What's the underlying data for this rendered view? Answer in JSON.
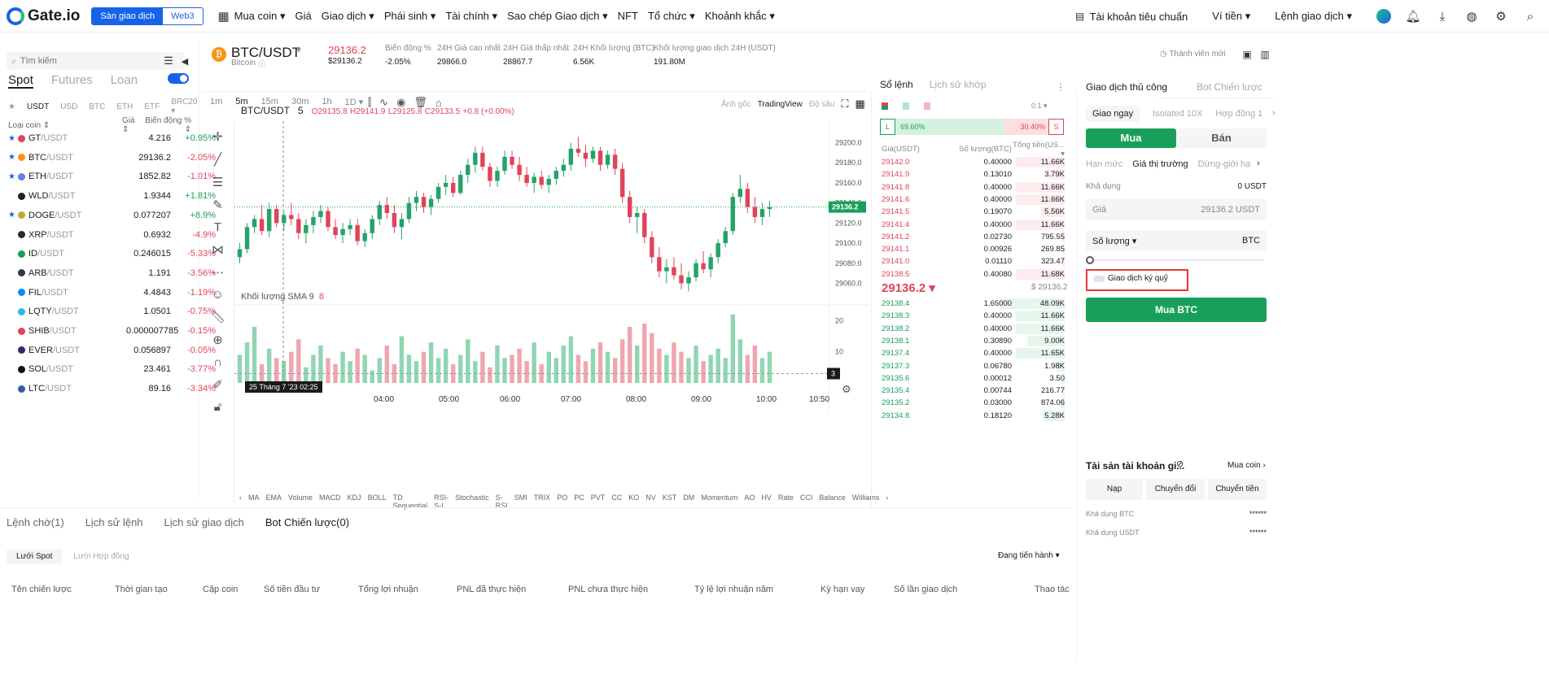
{
  "nav": {
    "brand": "Gate.io",
    "seg_on": "Sàn giao dịch",
    "seg_off": "Web3",
    "items": [
      "Mua coin ▾",
      "Giá",
      "Giao dịch ▾",
      "Phái sinh ▾",
      "Tài chính ▾",
      "Sao chép Giao dịch ▾",
      "NFT",
      "Tổ chức ▾",
      "Khoảnh khắc ▾"
    ],
    "right": [
      "Tài khoản tiêu chuẩn",
      "Ví tiền ▾",
      "Lệnh giao dịch ▾"
    ]
  },
  "left": {
    "search_placeholder": "Tìm kiếm",
    "tabs": [
      "Spot",
      "Futures",
      "Loan"
    ],
    "quote_tabs": [
      "USDT",
      "USD",
      "BTC",
      "ETH",
      "ETF",
      "BRC20 ▾"
    ],
    "col_coin": "Loại coin ⇕",
    "col_price": "Giá ⇕",
    "col_change": "Biến động % ⇕",
    "coins": [
      {
        "base": "GT",
        "quote": "/USDT",
        "price": "4.216",
        "change": "+0.95%",
        "up": true,
        "star": true,
        "color": "#e0445a"
      },
      {
        "base": "BTC",
        "quote": "/USDT",
        "price": "29136.2",
        "change": "-2.05%",
        "up": false,
        "star": true,
        "color": "#f7931a"
      },
      {
        "base": "ETH",
        "quote": "/USDT",
        "price": "1852.82",
        "change": "-1.01%",
        "up": false,
        "star": true,
        "color": "#627eea"
      },
      {
        "base": "WLD",
        "quote": "/USDT",
        "price": "1.9344",
        "change": "+1.81%",
        "up": true,
        "star": false,
        "color": "#222"
      },
      {
        "base": "DOGE",
        "quote": "/USDT",
        "price": "0.077207",
        "change": "+8.9%",
        "up": true,
        "star": true,
        "color": "#c2a633"
      },
      {
        "base": "XRP",
        "quote": "/USDT",
        "price": "0.6932",
        "change": "-4.9%",
        "up": false,
        "star": false,
        "color": "#23292f"
      },
      {
        "base": "ID",
        "quote": "/USDT",
        "price": "0.246015",
        "change": "-5.33%",
        "up": false,
        "star": false,
        "color": "#18a05a"
      },
      {
        "base": "ARB",
        "quote": "/USDT",
        "price": "1.191",
        "change": "-3.56%",
        "up": false,
        "star": false,
        "color": "#2d374b"
      },
      {
        "base": "FIL",
        "quote": "/USDT",
        "price": "4.4843",
        "change": "-1.19%",
        "up": false,
        "star": false,
        "color": "#0090ff"
      },
      {
        "base": "LQTY",
        "quote": "/USDT",
        "price": "1.0501",
        "change": "-0.75%",
        "up": false,
        "star": false,
        "color": "#2eb6ea"
      },
      {
        "base": "SHIB",
        "quote": "/USDT",
        "price": "0.000007785",
        "change": "-0.15%",
        "up": false,
        "star": false,
        "color": "#e0445a"
      },
      {
        "base": "EVER",
        "quote": "/USDT",
        "price": "0.056897",
        "change": "-0.05%",
        "up": false,
        "star": false,
        "color": "#2d2d6e"
      },
      {
        "base": "SOL",
        "quote": "/USDT",
        "price": "23.461",
        "change": "-3.77%",
        "up": false,
        "star": false,
        "color": "#111"
      },
      {
        "base": "LTC",
        "quote": "/USDT",
        "price": "89.16",
        "change": "-3.34%",
        "up": false,
        "star": false,
        "color": "#345d9d"
      }
    ]
  },
  "header": {
    "pair": "BTC/USDT",
    "name": "Bitcoin",
    "price": "29136.2",
    "price_usd": "$29136.2",
    "stats": [
      {
        "label": "Biến động %",
        "value": "-2.05%"
      },
      {
        "label": "24H Giá cao nhất",
        "value": "29866.0"
      },
      {
        "label": "24H Giá thấp nhất",
        "value": "28867.7"
      },
      {
        "label": "24H Khối lượng (BTC)",
        "value": "6.56K"
      },
      {
        "label": "Khối lượng giao dịch 24H (USDT)",
        "value": "191.80M"
      }
    ],
    "member": "Thành viên mới"
  },
  "chart": {
    "timeframes": [
      "1m",
      "5m",
      "15m",
      "30m",
      "1h",
      "1D ▾"
    ],
    "active_tf": "5m",
    "right_tools": [
      "Ảnh gốc",
      "TradingView",
      "Độ sâu"
    ],
    "legend_pair": "BTC/USDT",
    "legend_tf": "5",
    "legend_o": "O29135.8",
    "legend_h": "H29141.9",
    "legend_l": "L29125.8",
    "legend_c": "C29133.5",
    "legend_chg": "+0.8 (+0.00%)",
    "vol_legend": "Khối lượng SMA 9",
    "vol_value": "8",
    "cursor_label": "25 Tháng 7 '23   02:25",
    "last_price_tag": "29136.2",
    "vol_tag": "3",
    "indicators": [
      "MA",
      "EMA",
      "Volume",
      "MACD",
      "KDJ",
      "BOLL",
      "TD Sequential",
      "RSI-S-I",
      "Stochastic",
      "S-RSI",
      "SMI",
      "TRIX",
      "PO",
      "PC",
      "PVT",
      "CC",
      "KO",
      "NV",
      "KST",
      "DM",
      "Momentum",
      "AO",
      "HV",
      "Rate",
      "CCI",
      "Balance",
      "Williams"
    ]
  },
  "chart_data": {
    "type": "candlestick",
    "x_ticks": [
      "04:00",
      "05:00",
      "06:00",
      "07:00",
      "08:00",
      "09:00",
      "10:00",
      "10:50"
    ],
    "y_ticks": [
      29200.0,
      29180.0,
      29160.0,
      29140.0,
      29120.0,
      29100.0,
      29080.0,
      29060.0
    ],
    "ylim": [
      29045,
      29215
    ],
    "vol_ticks": [
      20,
      10
    ],
    "vol_ylim": [
      0,
      24
    ],
    "ohlc": [
      [
        29086,
        29100,
        29080,
        29094
      ],
      [
        29094,
        29120,
        29090,
        29116
      ],
      [
        29116,
        29128,
        29110,
        29124
      ],
      [
        29124,
        29138,
        29108,
        29112
      ],
      [
        29112,
        29140,
        29106,
        29134
      ],
      [
        29134,
        29138,
        29116,
        29120
      ],
      [
        29120,
        29132,
        29112,
        29128
      ],
      [
        29128,
        29140,
        29118,
        29124
      ],
      [
        29124,
        29130,
        29104,
        29110
      ],
      [
        29110,
        29124,
        29100,
        29118
      ],
      [
        29118,
        29132,
        29110,
        29126
      ],
      [
        29126,
        29138,
        29120,
        29132
      ],
      [
        29132,
        29136,
        29112,
        29116
      ],
      [
        29116,
        29124,
        29104,
        29108
      ],
      [
        29108,
        29120,
        29100,
        29114
      ],
      [
        29114,
        29124,
        29108,
        29118
      ],
      [
        29118,
        29124,
        29098,
        29102
      ],
      [
        29102,
        29114,
        29096,
        29110
      ],
      [
        29110,
        29128,
        29104,
        29124
      ],
      [
        29124,
        29142,
        29118,
        29138
      ],
      [
        29138,
        29146,
        29124,
        29130
      ],
      [
        29130,
        29138,
        29110,
        29116
      ],
      [
        29116,
        29130,
        29104,
        29124
      ],
      [
        29124,
        29146,
        29120,
        29140
      ],
      [
        29140,
        29152,
        29132,
        29146
      ],
      [
        29146,
        29150,
        29130,
        29136
      ],
      [
        29136,
        29148,
        29128,
        29144
      ],
      [
        29144,
        29160,
        29140,
        29156
      ],
      [
        29156,
        29168,
        29148,
        29160
      ],
      [
        29160,
        29166,
        29146,
        29150
      ],
      [
        29150,
        29172,
        29148,
        29168
      ],
      [
        29168,
        29184,
        29160,
        29178
      ],
      [
        29178,
        29196,
        29170,
        29190
      ],
      [
        29190,
        29196,
        29172,
        29176
      ],
      [
        29176,
        29180,
        29156,
        29162
      ],
      [
        29162,
        29176,
        29156,
        29172
      ],
      [
        29172,
        29192,
        29168,
        29186
      ],
      [
        29186,
        29192,
        29174,
        29178
      ],
      [
        29178,
        29186,
        29162,
        29168
      ],
      [
        29168,
        29176,
        29156,
        29160
      ],
      [
        29160,
        29170,
        29150,
        29166
      ],
      [
        29166,
        29172,
        29154,
        29158
      ],
      [
        29158,
        29168,
        29150,
        29164
      ],
      [
        29164,
        29176,
        29158,
        29172
      ],
      [
        29172,
        29184,
        29166,
        29178
      ],
      [
        29178,
        29200,
        29172,
        29194
      ],
      [
        29194,
        29206,
        29186,
        29190
      ],
      [
        29190,
        29198,
        29176,
        29184
      ],
      [
        29184,
        29196,
        29180,
        29192
      ],
      [
        29192,
        29196,
        29172,
        29178
      ],
      [
        29178,
        29192,
        29174,
        29188
      ],
      [
        29188,
        29194,
        29168,
        29174
      ],
      [
        29174,
        29180,
        29140,
        29146
      ],
      [
        29146,
        29152,
        29120,
        29126
      ],
      [
        29126,
        29136,
        29110,
        29130
      ],
      [
        29130,
        29134,
        29100,
        29106
      ],
      [
        29106,
        29112,
        29080,
        29086
      ],
      [
        29086,
        29096,
        29066,
        29072
      ],
      [
        29072,
        29084,
        29060,
        29076
      ],
      [
        29076,
        29086,
        29064,
        29068
      ],
      [
        29068,
        29080,
        29054,
        29060
      ],
      [
        29060,
        29072,
        29052,
        29066
      ],
      [
        29066,
        29084,
        29062,
        29080
      ],
      [
        29080,
        29092,
        29070,
        29074
      ],
      [
        29074,
        29090,
        29066,
        29086
      ],
      [
        29086,
        29104,
        29080,
        29100
      ],
      [
        29100,
        29116,
        29096,
        29112
      ],
      [
        29112,
        29150,
        29108,
        29146
      ],
      [
        29146,
        29168,
        29140,
        29154
      ],
      [
        29154,
        29160,
        29130,
        29136
      ],
      [
        29136,
        29146,
        29120,
        29126
      ],
      [
        29126,
        29140,
        29118,
        29134
      ],
      [
        29134,
        29142,
        29126,
        29136
      ]
    ],
    "volume": [
      9,
      13,
      18,
      6,
      11,
      8,
      7,
      10,
      14,
      5,
      9,
      12,
      8,
      6,
      10,
      7,
      11,
      9,
      4,
      8,
      12,
      6,
      15,
      9,
      7,
      10,
      13,
      8,
      11,
      6,
      9,
      14,
      7,
      10,
      5,
      12,
      8,
      9,
      11,
      7,
      13,
      6,
      10,
      8,
      12,
      15,
      9,
      7,
      11,
      13,
      10,
      8,
      14,
      18,
      12,
      19,
      16,
      11,
      9,
      13,
      10,
      8,
      12,
      7,
      9,
      11,
      8,
      22,
      14,
      9,
      12,
      8,
      10
    ]
  },
  "book": {
    "tabs": [
      "Sổ lệnh",
      "Lịch sử khớp"
    ],
    "precision": "0.1 ▾",
    "long_pct": "69.60%",
    "short_pct": "30.40%",
    "long_label": "L",
    "short_label": "S",
    "col_price": "Giá(USDT)",
    "col_qty": "Số lượng(BTC)",
    "col_total": "Tổng tiền(US... ▾",
    "asks": [
      [
        "29142.0",
        "0.40000",
        "11.66K"
      ],
      [
        "29141.9",
        "0.13010",
        "3.79K"
      ],
      [
        "29141.8",
        "0.40000",
        "11.66K"
      ],
      [
        "29141.6",
        "0.40000",
        "11.66K"
      ],
      [
        "29141.5",
        "0.19070",
        "5.56K"
      ],
      [
        "29141.4",
        "0.40000",
        "11.66K"
      ],
      [
        "29141.2",
        "0.02730",
        "795.55"
      ],
      [
        "29141.1",
        "0.00926",
        "269.85"
      ],
      [
        "29141.0",
        "0.01110",
        "323.47"
      ],
      [
        "29138.5",
        "0.40080",
        "11.68K"
      ]
    ],
    "mid": "29136.2 ▾",
    "mid_usd": "$ 29136.2",
    "bids": [
      [
        "29138.4",
        "1.65000",
        "48.09K"
      ],
      [
        "29138.3",
        "0.40000",
        "11.66K"
      ],
      [
        "29138.2",
        "0.40000",
        "11.66K"
      ],
      [
        "29138.1",
        "0.30890",
        "9.00K"
      ],
      [
        "29137.4",
        "0.40000",
        "11.65K"
      ],
      [
        "29137.3",
        "0.06780",
        "1.98K"
      ],
      [
        "29135.6",
        "0.00012",
        "3.50"
      ],
      [
        "29135.4",
        "0.00744",
        "216.77"
      ],
      [
        "29135.2",
        "0.03000",
        "874.06"
      ],
      [
        "29134.8",
        "0.18120",
        "5.28K"
      ]
    ]
  },
  "trade": {
    "tabs": [
      "Giao dịch thủ công",
      "Bot Chiến lược"
    ],
    "subtabs": [
      "Giao ngay",
      "Isolated 10X",
      "Hợp đồng 1"
    ],
    "buy": "Mua",
    "sell": "Bán",
    "types": [
      "Hạn mức",
      "Giá thị trường",
      "Dừng-giới hạ"
    ],
    "avail_label": "Khả dụng",
    "avail_value": "0 USDT",
    "price_label": "Giá",
    "price_value": "29136.2 USDT",
    "qty_label": "Số lượng ▾",
    "qty_unit": "BTC",
    "margin_label": "Giao dịch ký quỹ",
    "submit": "Mua BTC",
    "assets_title": "Tài sản tài khoản gi...",
    "assets_buy": "Mua coin ›",
    "asset_btns": [
      "Nạp",
      "Chuyển đổi",
      "Chuyển tiền"
    ],
    "avail_btc_label": "Khả dụng",
    "avail_btc_unit": "BTC",
    "avail_usdt_label": "Khả dụng",
    "avail_usdt_unit": "USDT",
    "masked": "******"
  },
  "bottom": {
    "tabs": [
      "Lệnh chờ(1)",
      "Lịch sử lệnh",
      "Lịch sử giao dịch",
      "Bot Chiến lược(0)"
    ],
    "active": 3,
    "subtabs": [
      "Lưới Spot",
      "Lưới Hợp đồng"
    ],
    "status": "Đang tiến hành ▾",
    "cols": [
      "Tên chiến lược",
      "Thời gian tạo",
      "Cặp coin",
      "Số tiền đầu tư",
      "Tổng lợi nhuận",
      "PNL đã thực hiện",
      "PNL chưa thực hiện",
      "Tỷ lệ lợi nhuận năm",
      "Kỳ hạn vay",
      "Số lần giao dịch",
      "Thao tác"
    ]
  }
}
